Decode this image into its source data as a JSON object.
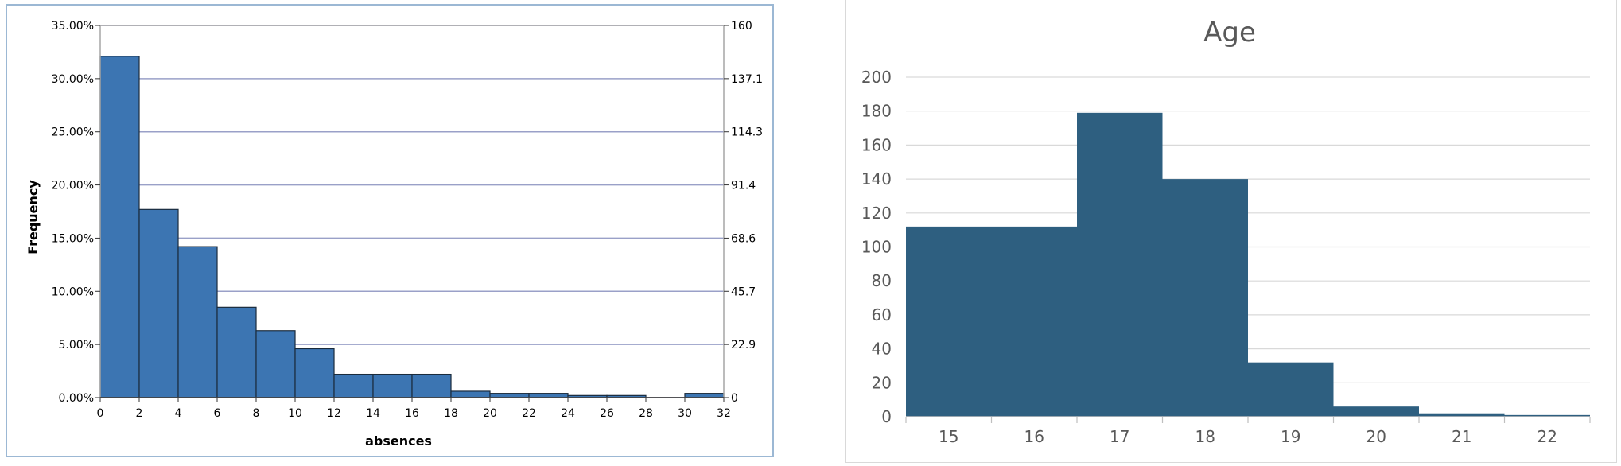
{
  "chart_data": [
    {
      "type": "bar",
      "xlabel": "absences",
      "ylabel": "Frequency",
      "x_ticks": [
        "0",
        "2",
        "4",
        "6",
        "8",
        "10",
        "12",
        "14",
        "16",
        "18",
        "20",
        "22",
        "24",
        "26",
        "28",
        "30",
        "32"
      ],
      "bins": [
        [
          0,
          2
        ],
        [
          2,
          4
        ],
        [
          4,
          6
        ],
        [
          6,
          8
        ],
        [
          8,
          10
        ],
        [
          10,
          12
        ],
        [
          12,
          14
        ],
        [
          14,
          16
        ],
        [
          16,
          18
        ],
        [
          18,
          20
        ],
        [
          20,
          22
        ],
        [
          22,
          24
        ],
        [
          24,
          26
        ],
        [
          26,
          28
        ],
        [
          28,
          30
        ],
        [
          30,
          32
        ]
      ],
      "values_percent": [
        32.1,
        17.7,
        14.2,
        8.5,
        6.3,
        4.6,
        2.2,
        2.2,
        2.2,
        0.6,
        0.4,
        0.4,
        0.2,
        0.2,
        0.0,
        0.4
      ],
      "ylim_left": [
        0,
        35
      ],
      "ylim_right": [
        0,
        160
      ],
      "left_ticks": [
        "0.00%",
        "5.00%",
        "10.00%",
        "15.00%",
        "20.00%",
        "25.00%",
        "30.00%",
        "35.00%"
      ],
      "right_ticks": [
        "0",
        "22.9",
        "45.7",
        "68.6",
        "91.4",
        "114.3",
        "137.1",
        "160"
      ],
      "grid": true,
      "bar_color": "#3c75b2",
      "edge_color": "#1a2b3c",
      "grid_color": "#9aa0c8"
    },
    {
      "type": "bar",
      "title": "Age",
      "categories": [
        "15",
        "16",
        "17",
        "18",
        "19",
        "20",
        "21",
        "22"
      ],
      "values": [
        112,
        112,
        179,
        140,
        32,
        6,
        2,
        1
      ],
      "ylim": [
        0,
        200
      ],
      "y_ticks": [
        "0",
        "20",
        "40",
        "60",
        "80",
        "100",
        "120",
        "140",
        "160",
        "180",
        "200"
      ],
      "grid": true,
      "bar_color": "#2e5f80",
      "grid_color": "#d9d9d9"
    }
  ]
}
